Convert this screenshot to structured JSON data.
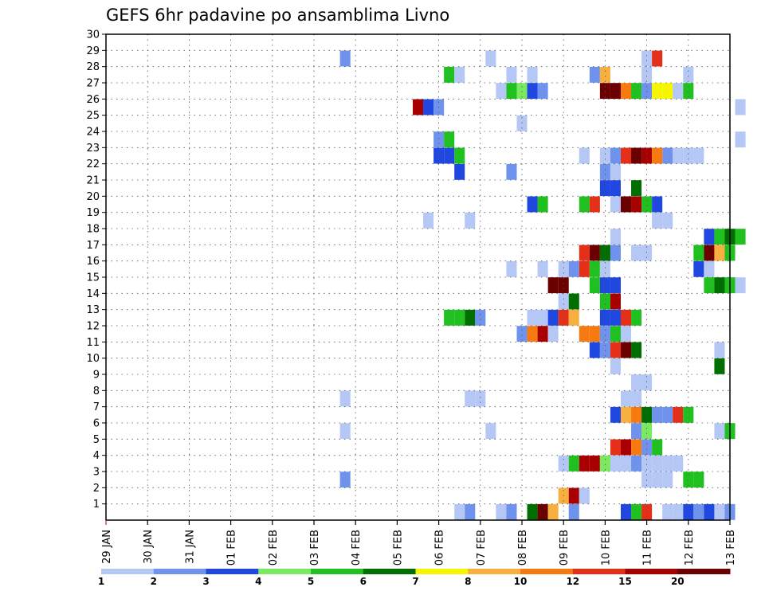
{
  "chart_data": {
    "type": "heatmap",
    "title": "GEFS 6hr padavine po ansamblima Livno",
    "xlabel": "",
    "ylabel": "",
    "x_tick_labels": [
      "29 JAN",
      "30 JAN",
      "31 JAN",
      "01 FEB",
      "02 FEB",
      "03 FEB",
      "04 FEB",
      "05 FEB",
      "06 FEB",
      "07 FEB",
      "08 FEB",
      "09 FEB",
      "10 FEB",
      "11 FEB",
      "12 FEB",
      "13 FEB"
    ],
    "y_tick_labels": [
      "1",
      "2",
      "3",
      "4",
      "5",
      "6",
      "7",
      "8",
      "9",
      "10",
      "11",
      "12",
      "13",
      "14",
      "15",
      "16",
      "17",
      "18",
      "19",
      "20",
      "21",
      "22",
      "23",
      "24",
      "25",
      "26",
      "27",
      "28",
      "29",
      "30"
    ],
    "ylim": [
      0,
      30
    ],
    "grid": true,
    "colorbar": {
      "labels": [
        "1",
        "2",
        "3",
        "4",
        "5",
        "6",
        "7",
        "8",
        "10",
        "12",
        "15",
        "20"
      ],
      "colors": [
        "#b5c7f5",
        "#6f93ec",
        "#2048e0",
        "#7ae860",
        "#20c020",
        "#006e00",
        "#f6f600",
        "#f7b040",
        "#f77a10",
        "#e43018",
        "#a80000",
        "#6a0000"
      ]
    },
    "members": [
      {
        "member": 0,
        "cells": [
          [
            29.5,
            1
          ],
          [
            29.75,
            2
          ],
          [
            30.5,
            1
          ],
          [
            30.75,
            2
          ],
          [
            31.25,
            6
          ],
          [
            31.5,
            12
          ],
          [
            31.75,
            8
          ],
          [
            32.25,
            2
          ],
          [
            33.5,
            3
          ],
          [
            33.75,
            5
          ],
          [
            34.0,
            10
          ],
          [
            34.5,
            1
          ],
          [
            34.75,
            1
          ],
          [
            35.0,
            3
          ],
          [
            35.25,
            2
          ],
          [
            35.5,
            3
          ],
          [
            35.75,
            1
          ],
          [
            36.0,
            2
          ]
        ]
      },
      {
        "member": 1,
        "cells": [
          [
            32.0,
            8
          ],
          [
            32.25,
            11
          ],
          [
            32.5,
            1
          ]
        ]
      },
      {
        "member": 2,
        "cells": [
          [
            26.75,
            2
          ],
          [
            34.0,
            1
          ],
          [
            34.25,
            1
          ],
          [
            34.5,
            1
          ],
          [
            35.0,
            5
          ],
          [
            35.25,
            5
          ]
        ]
      },
      {
        "member": 3,
        "cells": [
          [
            32.0,
            1
          ],
          [
            32.25,
            5
          ],
          [
            32.5,
            11
          ],
          [
            32.75,
            11
          ],
          [
            33.0,
            4
          ],
          [
            33.25,
            1
          ],
          [
            33.5,
            1
          ],
          [
            33.75,
            2
          ],
          [
            34.0,
            1
          ],
          [
            34.25,
            1
          ],
          [
            34.5,
            1
          ],
          [
            34.75,
            1
          ]
        ]
      },
      {
        "member": 4,
        "cells": [
          [
            33.25,
            10
          ],
          [
            33.5,
            11
          ],
          [
            33.75,
            9
          ],
          [
            34.0,
            2
          ],
          [
            34.25,
            5
          ]
        ]
      },
      {
        "member": 5,
        "cells": [
          [
            26.75,
            1
          ],
          [
            30.25,
            1
          ],
          [
            33.75,
            2
          ],
          [
            34.0,
            4
          ],
          [
            35.75,
            1
          ],
          [
            36.0,
            5
          ]
        ]
      },
      {
        "member": 6,
        "cells": [
          [
            33.25,
            3
          ],
          [
            33.5,
            8
          ],
          [
            33.75,
            9
          ],
          [
            34.0,
            6
          ],
          [
            34.25,
            2
          ],
          [
            34.5,
            2
          ],
          [
            34.75,
            10
          ],
          [
            35.0,
            5
          ]
        ]
      },
      {
        "member": 7,
        "cells": [
          [
            26.75,
            1
          ],
          [
            29.75,
            1
          ],
          [
            30.0,
            1
          ],
          [
            33.5,
            1
          ],
          [
            33.75,
            1
          ]
        ]
      },
      {
        "member": 8,
        "cells": [
          [
            33.75,
            1
          ],
          [
            34.0,
            1
          ]
        ]
      },
      {
        "member": 9,
        "cells": [
          [
            33.25,
            1
          ],
          [
            35.75,
            6
          ]
        ]
      },
      {
        "member": 10,
        "cells": [
          [
            32.75,
            3
          ],
          [
            33.0,
            2
          ],
          [
            33.25,
            10
          ],
          [
            33.5,
            12
          ],
          [
            33.75,
            6
          ],
          [
            35.75,
            1
          ]
        ]
      },
      {
        "member": 11,
        "cells": [
          [
            31.0,
            2
          ],
          [
            31.25,
            9
          ],
          [
            31.5,
            11
          ],
          [
            31.75,
            1
          ],
          [
            32.5,
            9
          ],
          [
            32.75,
            9
          ],
          [
            33.0,
            2
          ],
          [
            33.25,
            5
          ],
          [
            33.5,
            1
          ]
        ]
      },
      {
        "member": 12,
        "cells": [
          [
            29.25,
            5
          ],
          [
            29.5,
            5
          ],
          [
            29.75,
            6
          ],
          [
            30.0,
            2
          ],
          [
            31.25,
            1
          ],
          [
            31.5,
            1
          ],
          [
            31.75,
            3
          ],
          [
            32.0,
            10
          ],
          [
            32.25,
            8
          ],
          [
            33.0,
            3
          ],
          [
            33.25,
            3
          ],
          [
            33.5,
            10
          ],
          [
            33.75,
            5
          ]
        ]
      },
      {
        "member": 13,
        "cells": [
          [
            32.0,
            1
          ],
          [
            32.25,
            6
          ],
          [
            33.0,
            5
          ],
          [
            33.25,
            11
          ]
        ]
      },
      {
        "member": 14,
        "cells": [
          [
            31.75,
            12
          ],
          [
            32.0,
            12
          ],
          [
            32.75,
            5
          ],
          [
            33.0,
            3
          ],
          [
            33.25,
            3
          ],
          [
            35.5,
            5
          ],
          [
            35.75,
            6
          ],
          [
            36.0,
            5
          ],
          [
            36.25,
            1
          ]
        ]
      },
      {
        "member": 15,
        "cells": [
          [
            30.75,
            1
          ],
          [
            31.5,
            1
          ],
          [
            32.0,
            1
          ],
          [
            32.25,
            2
          ],
          [
            32.5,
            10
          ],
          [
            32.75,
            5
          ],
          [
            33.0,
            1
          ],
          [
            35.25,
            3
          ],
          [
            35.5,
            1
          ]
        ]
      },
      {
        "member": 16,
        "cells": [
          [
            32.5,
            10
          ],
          [
            32.75,
            12
          ],
          [
            33.0,
            6
          ],
          [
            33.25,
            2
          ],
          [
            33.75,
            1
          ],
          [
            34.0,
            1
          ],
          [
            35.25,
            5
          ],
          [
            35.5,
            12
          ],
          [
            35.75,
            8
          ],
          [
            36.0,
            5
          ]
        ]
      },
      {
        "member": 17,
        "cells": [
          [
            33.25,
            1
          ],
          [
            35.5,
            3
          ],
          [
            35.75,
            5
          ],
          [
            36.0,
            6
          ],
          [
            36.25,
            5
          ]
        ]
      },
      {
        "member": 18,
        "cells": [
          [
            28.75,
            1
          ],
          [
            29.75,
            1
          ],
          [
            34.25,
            1
          ],
          [
            34.5,
            1
          ]
        ]
      },
      {
        "member": 19,
        "cells": [
          [
            31.25,
            3
          ],
          [
            31.5,
            5
          ],
          [
            32.5,
            5
          ],
          [
            32.75,
            10
          ],
          [
            33.25,
            1
          ],
          [
            33.5,
            12
          ],
          [
            33.75,
            11
          ],
          [
            34.0,
            5
          ],
          [
            34.25,
            3
          ]
        ]
      },
      {
        "member": 20,
        "cells": [
          [
            33.0,
            3
          ],
          [
            33.25,
            3
          ],
          [
            33.75,
            6
          ]
        ]
      },
      {
        "member": 21,
        "cells": [
          [
            29.5,
            3
          ],
          [
            30.75,
            2
          ],
          [
            33.0,
            2
          ],
          [
            33.25,
            1
          ]
        ]
      },
      {
        "member": 22,
        "cells": [
          [
            29.0,
            3
          ],
          [
            29.25,
            3
          ],
          [
            29.5,
            5
          ],
          [
            32.5,
            1
          ],
          [
            33.0,
            1
          ],
          [
            33.25,
            2
          ],
          [
            33.5,
            10
          ],
          [
            33.75,
            12
          ],
          [
            34.0,
            11
          ],
          [
            34.25,
            9
          ],
          [
            34.5,
            2
          ],
          [
            34.75,
            1
          ],
          [
            35.0,
            1
          ],
          [
            35.25,
            1
          ]
        ]
      },
      {
        "member": 23,
        "cells": [
          [
            29.0,
            2
          ],
          [
            29.25,
            5
          ],
          [
            36.25,
            1
          ]
        ]
      },
      {
        "member": 24,
        "cells": [
          [
            31.0,
            1
          ]
        ]
      },
      {
        "member": 25,
        "cells": [
          [
            28.5,
            11
          ],
          [
            28.75,
            3
          ],
          [
            29.0,
            2
          ],
          [
            36.25,
            1
          ]
        ]
      },
      {
        "member": 26,
        "cells": [
          [
            30.5,
            1
          ],
          [
            30.75,
            5
          ],
          [
            31.0,
            4
          ],
          [
            31.25,
            3
          ],
          [
            31.5,
            2
          ],
          [
            33.0,
            12
          ],
          [
            33.25,
            12
          ],
          [
            33.5,
            9
          ],
          [
            33.75,
            5
          ],
          [
            34.0,
            2
          ],
          [
            34.25,
            7
          ],
          [
            34.5,
            7
          ],
          [
            34.75,
            1
          ],
          [
            35.0,
            5
          ]
        ]
      },
      {
        "member": 27,
        "cells": [
          [
            29.25,
            5
          ],
          [
            29.5,
            1
          ],
          [
            30.75,
            1
          ],
          [
            31.25,
            1
          ],
          [
            32.75,
            2
          ],
          [
            33.0,
            8
          ],
          [
            34.0,
            1
          ],
          [
            35.0,
            1
          ]
        ]
      },
      {
        "member": 28,
        "cells": [
          [
            26.75,
            2
          ],
          [
            30.25,
            1
          ],
          [
            34.0,
            1
          ],
          [
            34.25,
            10
          ]
        ]
      },
      {
        "member": 29,
        "cells": []
      }
    ]
  }
}
